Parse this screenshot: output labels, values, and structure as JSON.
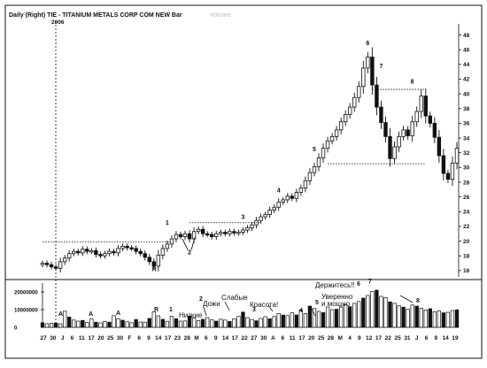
{
  "header": {
    "title": "Daily (Right) TIE - TITANIUM METALS CORP COM NEW Bar",
    "faded_label": "Volume",
    "year_label": "2006"
  },
  "chart_data": [
    {
      "type": "bar",
      "title": "Daily (Right) TIE - TITANIUM METALS CORP COM NEW Bar",
      "ylim": [
        15.5,
        49.5
      ],
      "y_ticks": [
        16,
        18,
        20,
        22,
        24,
        26,
        28,
        30,
        32,
        34,
        36,
        38,
        40,
        42,
        44,
        46,
        48
      ],
      "y_axis_side": "right",
      "grid": false,
      "price_levels": [
        {
          "value": 19.9,
          "from": 0,
          "to": 29
        },
        {
          "value": 22.5,
          "from": 33,
          "to": 49
        },
        {
          "value": 30.5,
          "from": 64,
          "to": 86
        },
        {
          "value": 40.6,
          "from": 74,
          "to": 86
        }
      ],
      "ohlc_close": [
        17.0,
        16.8,
        16.5,
        16.3,
        17.2,
        17.7,
        18.3,
        18.6,
        18.4,
        18.9,
        18.6,
        18.7,
        18.2,
        18.0,
        18.3,
        18.6,
        18.4,
        19.0,
        19.3,
        19.1,
        19.0,
        18.6,
        18.3,
        17.8,
        17.2,
        16.6,
        18.1,
        19.0,
        19.6,
        20.3,
        20.9,
        20.6,
        21.0,
        20.3,
        21.3,
        21.6,
        21.0,
        20.9,
        20.6,
        21.0,
        21.2,
        21.0,
        21.3,
        21.1,
        21.2,
        21.5,
        21.8,
        22.2,
        22.8,
        23.3,
        23.6,
        24.2,
        24.6,
        25.3,
        25.6,
        26.1,
        25.8,
        26.6,
        27.2,
        28.2,
        29.3,
        30.1,
        31.3,
        32.6,
        33.6,
        34.2,
        35.1,
        36.2,
        37.2,
        38.2,
        39.5,
        41.0,
        43.5,
        45.0,
        41.2,
        38.2,
        36.1,
        34.2,
        31.2,
        32.8,
        34.2,
        35.1,
        34.3,
        36.2,
        37.6,
        39.7,
        37.0,
        36.0,
        34.1,
        31.6,
        29.2,
        28.4,
        30.6,
        32.6
      ],
      "annotations": [
        {
          "label": "R",
          "index": 25,
          "price": 15.9
        },
        {
          "label": "1",
          "index": 28,
          "price": 22.2
        },
        {
          "label": "2",
          "index": 33,
          "price": 18.2
        },
        {
          "label": "3",
          "index": 45,
          "price": 23.0
        },
        {
          "label": "4",
          "index": 53,
          "price": 26.6
        },
        {
          "label": "5",
          "index": 61,
          "price": 32.2
        },
        {
          "label": "6",
          "index": 73,
          "price": 46.6
        },
        {
          "label": "7",
          "index": 76,
          "price": 43.5
        },
        {
          "label": "8",
          "index": 83,
          "price": 41.4
        }
      ]
    },
    {
      "type": "bar",
      "title": "",
      "ylim": [
        0,
        25000000
      ],
      "y_ticks_labels": [
        "20000000",
        "10000000",
        "0"
      ],
      "values": [
        2.6,
        2.0,
        2.2,
        2.4,
        2.0,
        9.1,
        5.8,
        4.1,
        3.5,
        3.9,
        2.8,
        4.7,
        2.9,
        2.5,
        3.3,
        2.9,
        6.6,
        4.9,
        4.0,
        3.1,
        2.6,
        4.4,
        3.0,
        2.9,
        5.0,
        8.8,
        6.5,
        4.5,
        3.4,
        6.2,
        4.8,
        3.5,
        3.6,
        6.3,
        5.4,
        3.8,
        4.5,
        5.5,
        4.2,
        3.5,
        4.6,
        4.1,
        3.3,
        4.8,
        6.2,
        8.6,
        5.5,
        4.4,
        3.7,
        5.0,
        6.0,
        4.8,
        6.1,
        7.8,
        6.9,
        6.6,
        8.2,
        7.0,
        9.8,
        7.8,
        12.0,
        10.6,
        9.0,
        8.3,
        11.5,
        10.0,
        10.2,
        11.5,
        12.8,
        11.7,
        13.5,
        14.6,
        16.5,
        18.0,
        20.3,
        21.0,
        17.5,
        16.8,
        14.4,
        13.6,
        12.2,
        11.4,
        10.3,
        12.6,
        12.0,
        10.8,
        9.8,
        10.5,
        8.8,
        9.3,
        8.2,
        8.5,
        9.5,
        9.9
      ],
      "annotations": {
        "numbers": [
          "A",
          "A",
          "A",
          "R",
          "1",
          "2",
          "3",
          "4",
          "5",
          "6",
          "7",
          "8"
        ],
        "russian": [
          "Низкие",
          "Дожи",
          "Слабые",
          "Красота!",
          "Держитесь!!",
          "Уверенно",
          "и мощно"
        ]
      }
    }
  ],
  "x_axis_labels": [
    "27",
    "30",
    "J",
    "6",
    "11",
    "17",
    "20",
    "25",
    "30",
    "F",
    "6",
    "9",
    "14",
    "17",
    "23",
    "28",
    "M",
    "6",
    "9",
    "14",
    "17",
    "22",
    "27",
    "30",
    "A",
    "6",
    "11",
    "17",
    "20",
    "25",
    "28",
    "M",
    "4",
    "9",
    "12",
    "17",
    "22",
    "25",
    "31",
    "J",
    "6",
    "9",
    "14",
    "19"
  ]
}
